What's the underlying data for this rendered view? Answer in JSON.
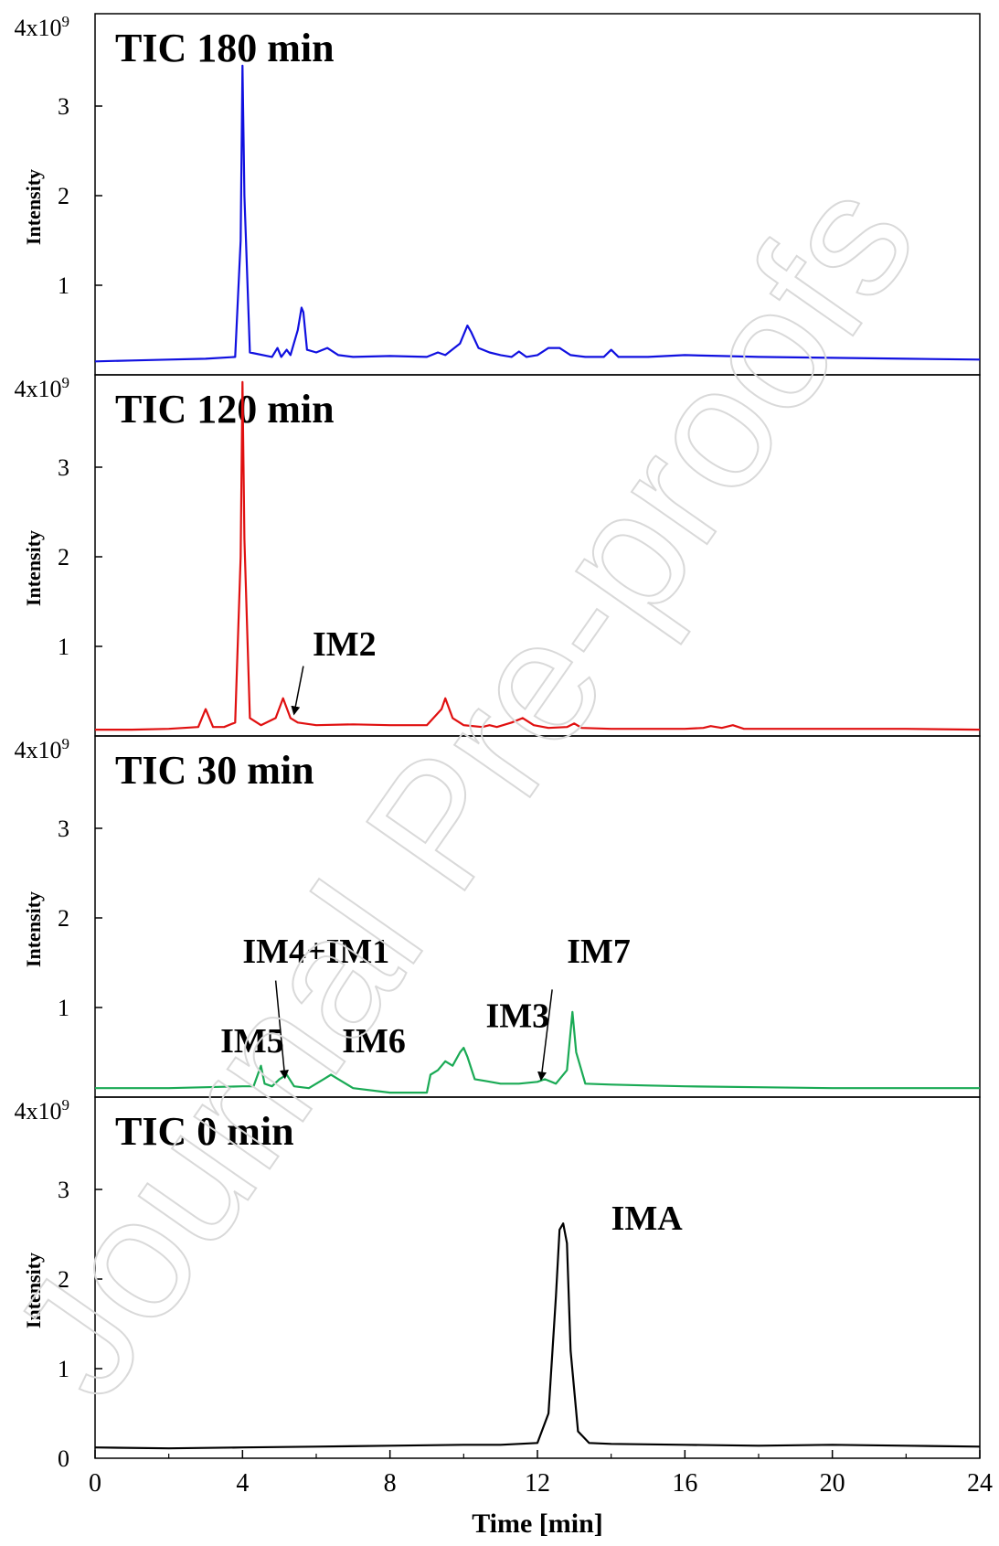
{
  "chart_data": {
    "type": "line",
    "xlabel": "Time [min]",
    "xlim": [
      0,
      24
    ],
    "x_ticks": [
      "0",
      "4",
      "8",
      "12",
      "16",
      "20",
      "24"
    ],
    "ylim": [
      0,
      4
    ],
    "y_tick_values": [
      0,
      1,
      2,
      3,
      4
    ],
    "y_tick_labels": [
      "0",
      "1",
      "2",
      "3",
      "4x10"
    ],
    "y_top_exponent": "9",
    "panels": [
      {
        "title": "TIC 180 min",
        "ylabel": "Intensity",
        "color": "#1010e0",
        "x": [
          0,
          1,
          2,
          3,
          3.8,
          3.95,
          4.0,
          4.05,
          4.2,
          4.8,
          4.95,
          5.05,
          5.2,
          5.3,
          5.5,
          5.6,
          5.65,
          5.75,
          6.0,
          6.3,
          6.6,
          7,
          8,
          9,
          9.3,
          9.5,
          9.9,
          10.1,
          10.2,
          10.4,
          10.7,
          11,
          11.3,
          11.5,
          11.7,
          12,
          12.3,
          12.6,
          12.9,
          13.3,
          13.8,
          14.0,
          14.2,
          15,
          16,
          17,
          18,
          20,
          22,
          24
        ],
        "y": [
          0.15,
          0.16,
          0.17,
          0.18,
          0.2,
          1.5,
          3.45,
          2.0,
          0.25,
          0.2,
          0.3,
          0.2,
          0.28,
          0.22,
          0.5,
          0.75,
          0.7,
          0.28,
          0.25,
          0.3,
          0.22,
          0.2,
          0.21,
          0.2,
          0.25,
          0.22,
          0.35,
          0.55,
          0.48,
          0.3,
          0.25,
          0.22,
          0.2,
          0.26,
          0.2,
          0.22,
          0.3,
          0.3,
          0.22,
          0.2,
          0.2,
          0.28,
          0.2,
          0.2,
          0.22,
          0.21,
          0.2,
          0.19,
          0.18,
          0.17
        ]
      },
      {
        "title": "TIC 120 min",
        "ylabel": "Intensity",
        "color": "#e01010",
        "x": [
          0,
          1,
          2,
          2.8,
          3.0,
          3.2,
          3.5,
          3.8,
          3.95,
          4.0,
          4.05,
          4.2,
          4.5,
          4.9,
          5.1,
          5.3,
          5.5,
          6,
          7,
          8,
          9,
          9.4,
          9.5,
          9.7,
          10,
          10.5,
          10.7,
          10.9,
          11.3,
          11.6,
          11.9,
          12.3,
          12.8,
          13.0,
          13.2,
          14,
          15,
          16,
          16.5,
          16.7,
          17.0,
          17.3,
          17.6,
          18,
          20,
          22,
          24
        ],
        "y": [
          0.07,
          0.07,
          0.08,
          0.1,
          0.3,
          0.1,
          0.1,
          0.15,
          2.0,
          3.95,
          2.2,
          0.2,
          0.12,
          0.2,
          0.42,
          0.2,
          0.15,
          0.12,
          0.13,
          0.12,
          0.12,
          0.3,
          0.42,
          0.2,
          0.12,
          0.1,
          0.12,
          0.1,
          0.15,
          0.2,
          0.12,
          0.09,
          0.1,
          0.14,
          0.09,
          0.08,
          0.08,
          0.08,
          0.09,
          0.11,
          0.09,
          0.12,
          0.08,
          0.08,
          0.08,
          0.08,
          0.07
        ]
      },
      {
        "title": "TIC 30 min",
        "ylabel": "Intensity",
        "color": "#1aaa55",
        "x": [
          0,
          2,
          4,
          4.3,
          4.5,
          4.6,
          4.8,
          5.0,
          5.2,
          5.4,
          5.8,
          6.2,
          6.4,
          6.6,
          7,
          8,
          9,
          9.1,
          9.3,
          9.5,
          9.7,
          9.9,
          10.0,
          10.1,
          10.3,
          10.6,
          11,
          11.5,
          12,
          12.2,
          12.5,
          12.8,
          12.95,
          13.05,
          13.3,
          14,
          15,
          16,
          18,
          20,
          22,
          24
        ],
        "y": [
          0.1,
          0.1,
          0.12,
          0.12,
          0.35,
          0.15,
          0.12,
          0.2,
          0.25,
          0.12,
          0.1,
          0.2,
          0.25,
          0.2,
          0.1,
          0.05,
          0.05,
          0.25,
          0.3,
          0.4,
          0.35,
          0.5,
          0.55,
          0.45,
          0.2,
          0.18,
          0.15,
          0.15,
          0.17,
          0.2,
          0.15,
          0.3,
          0.95,
          0.5,
          0.15,
          0.14,
          0.13,
          0.12,
          0.11,
          0.1,
          0.1,
          0.1
        ]
      },
      {
        "title": "TIC 0 min",
        "ylabel": "Intensity",
        "color": "#000000",
        "x": [
          0,
          2,
          4,
          6,
          8,
          10,
          11,
          12,
          12.3,
          12.5,
          12.6,
          12.7,
          12.8,
          12.9,
          13.1,
          13.4,
          14,
          16,
          18,
          20,
          22,
          24
        ],
        "y": [
          0.12,
          0.11,
          0.12,
          0.13,
          0.14,
          0.15,
          0.15,
          0.17,
          0.5,
          1.8,
          2.55,
          2.62,
          2.4,
          1.2,
          0.3,
          0.17,
          0.16,
          0.15,
          0.14,
          0.15,
          0.14,
          0.13
        ]
      }
    ],
    "annotations": [
      {
        "panel": 1,
        "text": "IM2",
        "text_x": 5.9,
        "text_y": 0.9,
        "arrow": [
          [
            5.65,
            0.78
          ],
          [
            5.4,
            0.25
          ]
        ]
      },
      {
        "panel": 2,
        "text": "IM4+IM1",
        "text_x": 4.0,
        "text_y": 1.5,
        "arrow": [
          [
            4.9,
            1.3
          ],
          [
            5.15,
            0.22
          ]
        ]
      },
      {
        "panel": 2,
        "text": "IM5",
        "text_x": 3.4,
        "text_y": 0.5,
        "arrow": null
      },
      {
        "panel": 2,
        "text": "IM6",
        "text_x": 6.7,
        "text_y": 0.5,
        "arrow": null
      },
      {
        "panel": 2,
        "text": "IM3",
        "text_x": 10.6,
        "text_y": 0.78,
        "arrow": null
      },
      {
        "panel": 2,
        "text": "IM7",
        "text_x": 12.8,
        "text_y": 1.5,
        "arrow": [
          [
            12.4,
            1.2
          ],
          [
            12.1,
            0.2
          ]
        ]
      },
      {
        "panel": 3,
        "text": "IMA",
        "text_x": 14.0,
        "text_y": 2.55,
        "arrow": null
      }
    ]
  },
  "watermark": "Journal Pre-proofs"
}
